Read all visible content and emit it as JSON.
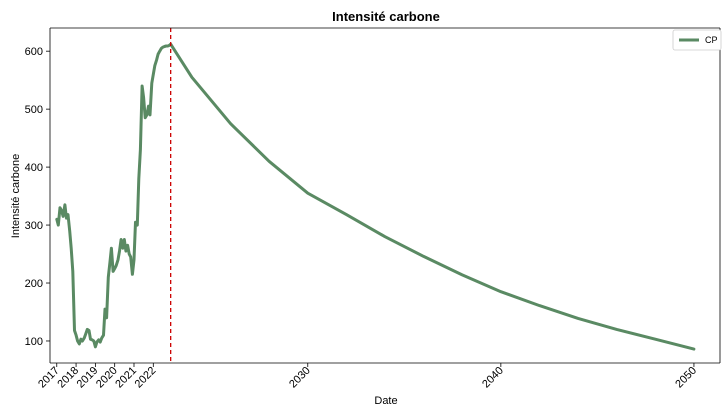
{
  "chart_data": {
    "type": "line",
    "title": "Intensité carbone",
    "xlabel": "Date",
    "ylabel": "Intensité carbone",
    "xlim": [
      2016.65,
      2051.35
    ],
    "ylim": [
      62,
      640
    ],
    "grid": false,
    "legend": {
      "position": "top-right",
      "entries": [
        "CP"
      ]
    },
    "x_ticks": [
      {
        "value": 2017,
        "label": "2017"
      },
      {
        "value": 2018,
        "label": "2018"
      },
      {
        "value": 2019,
        "label": "2019"
      },
      {
        "value": 2020,
        "label": "2020"
      },
      {
        "value": 2021,
        "label": "2021"
      },
      {
        "value": 2022,
        "label": "2022"
      },
      {
        "value": 2030,
        "label": "2030"
      },
      {
        "value": 2040,
        "label": "2040"
      },
      {
        "value": 2050,
        "label": "2050"
      }
    ],
    "y_ticks": [
      {
        "value": 100,
        "label": "100"
      },
      {
        "value": 200,
        "label": "200"
      },
      {
        "value": 300,
        "label": "300"
      },
      {
        "value": 400,
        "label": "400"
      },
      {
        "value": 500,
        "label": "500"
      },
      {
        "value": 600,
        "label": "600"
      }
    ],
    "vline": {
      "x": 2022.9,
      "color": "#cc0000",
      "style": "dashed"
    },
    "series": [
      {
        "name": "CP",
        "color": "#5a8a63",
        "x": [
          2017.0,
          2017.08,
          2017.17,
          2017.25,
          2017.33,
          2017.42,
          2017.5,
          2017.58,
          2017.67,
          2017.75,
          2017.83,
          2017.92,
          2018.0,
          2018.08,
          2018.17,
          2018.25,
          2018.33,
          2018.42,
          2018.5,
          2018.58,
          2018.67,
          2018.75,
          2018.83,
          2018.92,
          2019.0,
          2019.08,
          2019.17,
          2019.25,
          2019.33,
          2019.42,
          2019.5,
          2019.58,
          2019.67,
          2019.75,
          2019.83,
          2019.92,
          2020.0,
          2020.08,
          2020.17,
          2020.25,
          2020.33,
          2020.42,
          2020.5,
          2020.58,
          2020.67,
          2020.75,
          2020.83,
          2020.92,
          2021.0,
          2021.08,
          2021.17,
          2021.25,
          2021.33,
          2021.42,
          2021.5,
          2021.58,
          2021.67,
          2021.75,
          2021.83,
          2021.92,
          2022.0,
          2022.08,
          2022.17,
          2022.25,
          2022.33,
          2022.42,
          2022.5,
          2022.58,
          2022.67,
          2022.75,
          2022.83,
          2022.9,
          2024,
          2026,
          2028,
          2030,
          2032,
          2034,
          2036,
          2038,
          2040,
          2042,
          2044,
          2046,
          2048,
          2050
        ],
        "values": [
          310,
          300,
          330,
          325,
          315,
          335,
          312,
          318,
          290,
          260,
          220,
          118,
          110,
          100,
          95,
          103,
          100,
          105,
          112,
          120,
          118,
          103,
          102,
          100,
          90,
          98,
          102,
          98,
          105,
          110,
          155,
          140,
          210,
          235,
          260,
          220,
          225,
          230,
          240,
          255,
          275,
          260,
          275,
          255,
          265,
          250,
          245,
          215,
          240,
          305,
          300,
          380,
          430,
          540,
          520,
          485,
          490,
          505,
          490,
          545,
          560,
          575,
          585,
          595,
          600,
          605,
          607,
          608,
          609,
          609,
          610,
          612,
          555,
          475,
          410,
          355,
          318,
          280,
          246,
          214,
          185,
          161,
          139,
          120,
          103,
          86
        ]
      }
    ]
  }
}
